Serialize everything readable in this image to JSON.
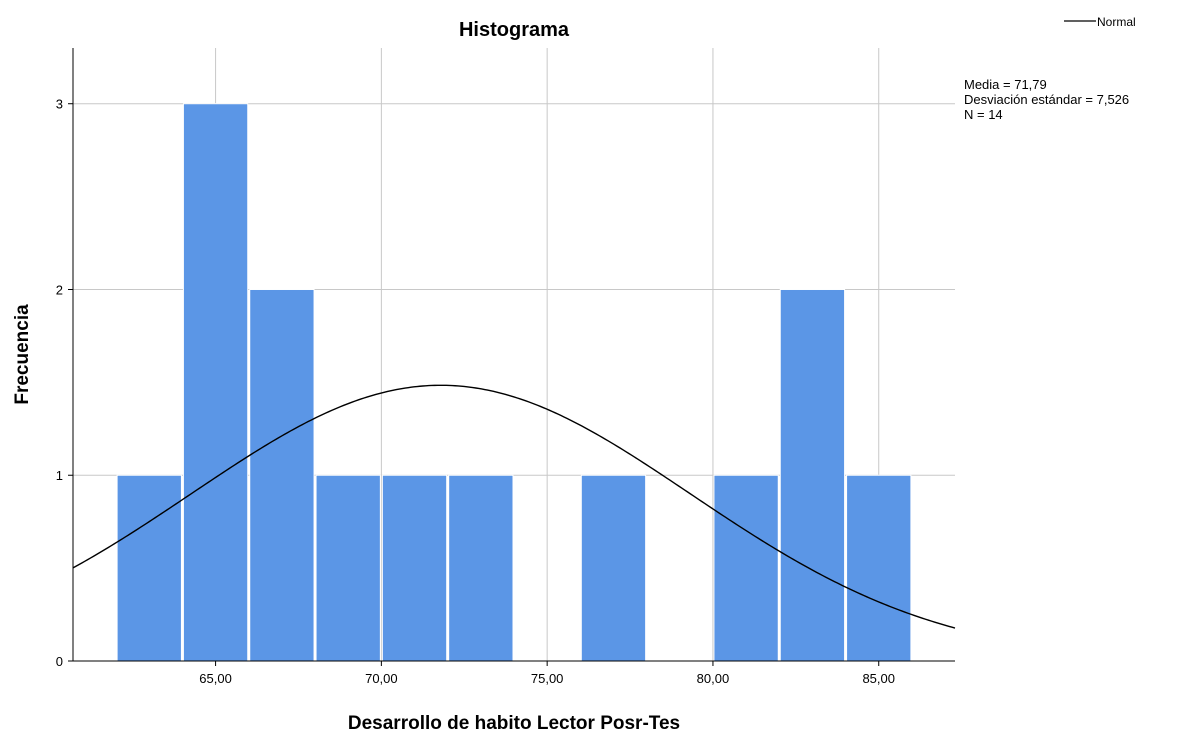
{
  "chart_data": {
    "type": "bar",
    "title": "Histograma",
    "xlabel": "Desarrollo de habito Lector Posr-Tes",
    "ylabel": "Frecuencia",
    "bin_width": 2,
    "bins": [
      {
        "start": 62,
        "end": 64,
        "count": 1
      },
      {
        "start": 64,
        "end": 66,
        "count": 3
      },
      {
        "start": 66,
        "end": 68,
        "count": 2
      },
      {
        "start": 68,
        "end": 70,
        "count": 1
      },
      {
        "start": 70,
        "end": 72,
        "count": 1
      },
      {
        "start": 72,
        "end": 74,
        "count": 1
      },
      {
        "start": 76,
        "end": 78,
        "count": 1
      },
      {
        "start": 80,
        "end": 82,
        "count": 1
      },
      {
        "start": 82,
        "end": 84,
        "count": 2
      },
      {
        "start": 84,
        "end": 86,
        "count": 1
      }
    ],
    "xlim": [
      60.7,
      87.3
    ],
    "ylim": [
      0,
      3.3
    ],
    "x_ticks": [
      65,
      70,
      75,
      80,
      85
    ],
    "x_tick_labels": [
      "65,00",
      "70,00",
      "75,00",
      "80,00",
      "85,00"
    ],
    "y_ticks": [
      0,
      1,
      2,
      3
    ],
    "y_tick_labels": [
      "0",
      "1",
      "2",
      "3"
    ],
    "grid": true,
    "bar_color": "#5b96e6",
    "normal_curve": {
      "mean": 71.79,
      "sd": 7.526,
      "n": 14
    },
    "legend": {
      "entries": [
        "Normal"
      ],
      "position": "top-right"
    },
    "stats": {
      "media": "Media = 71,79",
      "desviacion": "Desviación estándar = 7,526",
      "n": "N = 14"
    }
  }
}
